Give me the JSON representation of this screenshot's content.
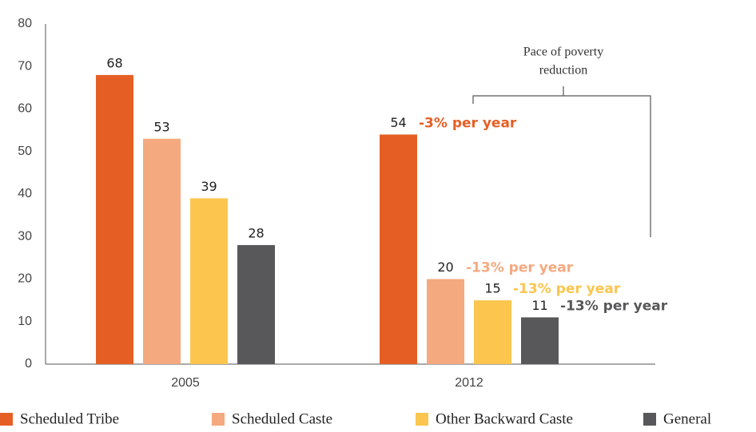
{
  "chart_data": {
    "type": "bar",
    "categories": [
      "2005",
      "2012"
    ],
    "series": [
      {
        "name": "Scheduled Tribe",
        "color": "#e55f25",
        "values": [
          68,
          54
        ],
        "rate_label": "-3% per year"
      },
      {
        "name": "Scheduled Caste",
        "color": "#f5a97f",
        "values": [
          53,
          20
        ],
        "rate_label": "-13% per year"
      },
      {
        "name": "Other Backward Caste",
        "color": "#fbc54e",
        "values": [
          39,
          15
        ],
        "rate_label": "-13% per year"
      },
      {
        "name": "General",
        "color": "#58585a",
        "values": [
          28,
          11
        ],
        "rate_label": "-13% per year"
      }
    ],
    "annotation": [
      "Pace of poverty",
      "reduction"
    ],
    "ylim": [
      0,
      80
    ],
    "yticks": [
      0,
      10,
      20,
      30,
      40,
      50,
      60,
      70,
      80
    ],
    "grid": false
  }
}
